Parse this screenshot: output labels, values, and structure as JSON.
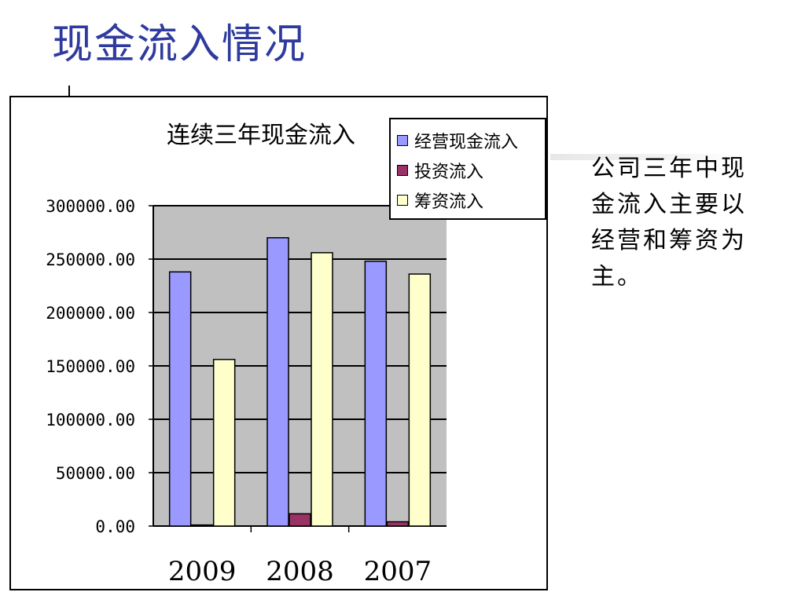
{
  "slide": {
    "title": "现金流入情况",
    "note": "公司三年中现金流入主要以经营和筹资为主。"
  },
  "chart_data": {
    "type": "bar",
    "title": "连续三年现金流入",
    "categories": [
      "2009",
      "2008",
      "2007"
    ],
    "series": [
      {
        "name": "经营现金流入",
        "color": "#9999ff",
        "values": [
          238000,
          270000,
          248000
        ]
      },
      {
        "name": "投资流入",
        "color": "#993366",
        "values": [
          1000,
          11500,
          4000
        ]
      },
      {
        "name": "筹资流入",
        "color": "#ffffcc",
        "values": [
          156000,
          256000,
          236000
        ]
      }
    ],
    "ylim": [
      0,
      300000
    ],
    "yticks": [
      "0.00",
      "50000.00",
      "100000.00",
      "150000.00",
      "200000.00",
      "250000.00",
      "300000.00"
    ],
    "xlabel": "",
    "ylabel": "",
    "grid": true,
    "plot_background": "#c0c0c0",
    "legend_position": "top-right"
  }
}
